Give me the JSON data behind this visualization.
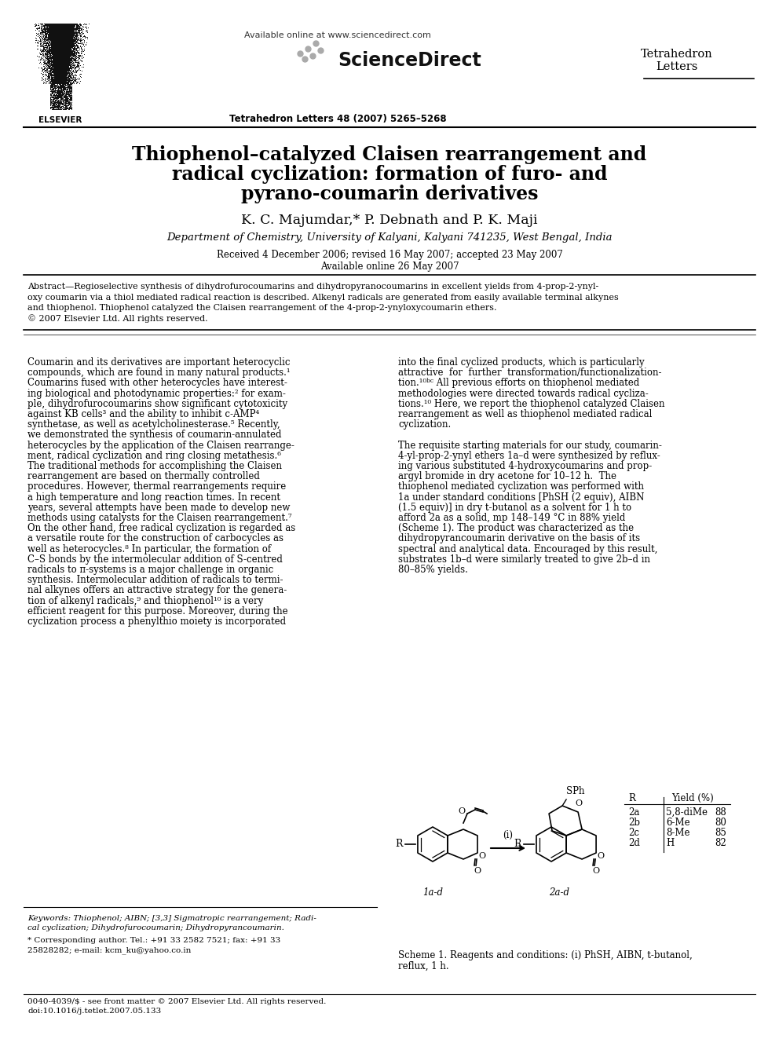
{
  "bg_color": "#ffffff",
  "title_line1": "Thiophenol–catalyzed Claisen rearrangement and",
  "title_line2": "radical cyclization: formation of furo- and",
  "title_line3": "pyrano-coumarin derivatives",
  "authors": "K. C. Majumdar,* P. Debnath and P. K. Maji",
  "affiliation": "Department of Chemistry, University of Kalyani, Kalyani 741235, West Bengal, India",
  "dates": "Received 4 December 2006; revised 16 May 2007; accepted 23 May 2007",
  "available": "Available online 26 May 2007",
  "journal_header": "Tetrahedron Letters 48 (2007) 5265–5268",
  "available_online": "Available online at www.sciencedirect.com",
  "journal_name_right1": "Tetrahedron",
  "journal_name_right2": "Letters",
  "abstract_lines": [
    "Abstract—Regioselective synthesis of dihydrofurocoumarins and dihydropyranocoumarins in excellent yields from 4-prop-2-ynyl-",
    "oxy coumarin via a thiol mediated radical reaction is described. Alkenyl radicals are generated from easily available terminal alkynes",
    "and thiophenol. Thiophenol catalyzed the Claisen rearrangement of the 4-prop-2-ynyloxycoumarin ethers.",
    "© 2007 Elsevier Ltd. All rights reserved."
  ],
  "col1_lines": [
    "Coumarin and its derivatives are important heterocyclic",
    "compounds, which are found in many natural products.¹",
    "Coumarins fused with other heterocycles have interest-",
    "ing biological and photodynamic properties:² for exam-",
    "ple, dihydrofurocoumarins show significant cytotoxicity",
    "against KB cells³ and the ability to inhibit c-AMP⁴",
    "synthetase, as well as acetylcholinesterase.⁵ Recently,",
    "we demonstrated the synthesis of coumarin-annulated",
    "heterocycles by the application of the Claisen rearrange-",
    "ment, radical cyclization and ring closing metathesis.⁶",
    "The traditional methods for accomplishing the Claisen",
    "rearrangement are based on thermally controlled",
    "procedures. However, thermal rearrangements require",
    "a high temperature and long reaction times. In recent",
    "years, several attempts have been made to develop new",
    "methods using catalysts for the Claisen rearrangement.⁷",
    "On the other hand, free radical cyclization is regarded as",
    "a versatile route for the construction of carbocycles as",
    "well as heterocycles.⁸ In particular, the formation of",
    "C–S bonds by the intermolecular addition of S-centred",
    "radicals to π-systems is a major challenge in organic",
    "synthesis. Intermolecular addition of radicals to termi-",
    "nal alkynes offers an attractive strategy for the genera-",
    "tion of alkenyl radicals,⁹ and thiophenol¹⁰ is a very",
    "efficient reagent for this purpose. Moreover, during the",
    "cyclization process a phenylthio moiety is incorporated"
  ],
  "col2_lines": [
    "into the final cyclized products, which is particularly",
    "attractive  for  further  transformation/functionalization-",
    "tion.¹⁰ᵇᶜ All previous efforts on thiophenol mediated",
    "methodologies were directed towards radical cycliza-",
    "tions.¹⁰ Here, we report the thiophenol catalyzed Claisen",
    "rearrangement as well as thiophenol mediated radical",
    "cyclization.",
    "",
    "The requisite starting materials for our study, coumarin-",
    "4-yl-prop-2-ynyl ethers 1a–d were synthesized by reflux-",
    "ing various substituted 4-hydroxycoumarins and prop-",
    "argyl bromide in dry acetone for 10–12 h.  The",
    "thiophenol mediated cyclization was performed with",
    "1a under standard conditions [PhSH (2 equiv), AIBN",
    "(1.5 equiv)] in dry t-butanol as a solvent for 1 h to",
    "afford 2a as a solid, mp 148–149 °C in 88% yield",
    "(Scheme 1). The product was characterized as the",
    "dihydropyrancoumarin derivative on the basis of its",
    "spectral and analytical data. Encouraged by this result,",
    "substrates 1b–d were similarly treated to give 2b–d in",
    "80–85% yields."
  ],
  "scheme_caption1": "Scheme 1. Reagents and conditions: (i) PhSH, AIBN, t-butanol,",
  "scheme_caption2": "reflux, 1 h.",
  "kw_lines": [
    "Keywords: Thiophenol; AIBN; [3,3] Sigmatropic rearrangement; Radi-",
    "cal cyclization; Dihydrofurocoumarin; Dihydropyrancoumarin."
  ],
  "footnote1": "* Corresponding author. Tel.: +91 33 2582 7521; fax: +91 33",
  "footnote2": "25828282; e-mail: kcm_ku@yahoo.co.in",
  "footer1": "0040-4039/$ - see front matter © 2007 Elsevier Ltd. All rights reserved.",
  "footer2": "doi:10.1016/j.tetlet.2007.05.133",
  "table_rows": [
    [
      "2a",
      "5,8-diMe",
      "88"
    ],
    [
      "2b",
      "6-Me",
      "80"
    ],
    [
      "2c",
      "8-Me",
      "85"
    ],
    [
      "2d",
      "H",
      "82"
    ]
  ]
}
